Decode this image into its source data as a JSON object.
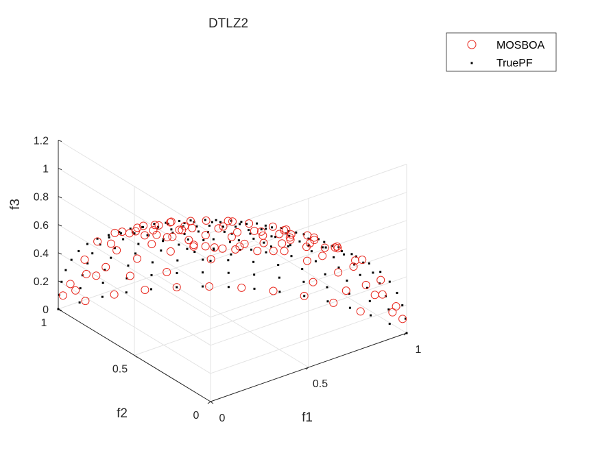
{
  "chart_data": {
    "type": "scatter",
    "title": "DTLZ2",
    "xlabel": "f1",
    "ylabel": "f2",
    "zlabel": "f3",
    "xlim": [
      0,
      1
    ],
    "ylim": [
      0,
      1
    ],
    "zlim": [
      0,
      1.2
    ],
    "x_ticks": [
      "0",
      "0.5",
      "1"
    ],
    "y_ticks": [
      "0",
      "0.5",
      "1"
    ],
    "z_ticks": [
      "0",
      "0.2",
      "0.4",
      "0.6",
      "0.8",
      "1",
      "1.2"
    ],
    "grid": true,
    "legend_position": "top-right",
    "series": [
      {
        "name": "MOSBOA",
        "marker": "open-circle",
        "color": "#e8281e",
        "points": [
          [
            0.966,
            0.259,
            0.0
          ],
          [
            0.924,
            0.383,
            0.0
          ],
          [
            0.866,
            0.5,
            0.0
          ],
          [
            0.793,
            0.609,
            0.0
          ],
          [
            0.707,
            0.707,
            0.0
          ],
          [
            0.609,
            0.793,
            0.0
          ],
          [
            0.5,
            0.866,
            0.0
          ],
          [
            0.383,
            0.924,
            0.0
          ],
          [
            0.259,
            0.966,
            0.0
          ],
          [
            0.131,
            0.991,
            0.0
          ],
          [
            0.951,
            0.204,
            0.231
          ],
          [
            0.907,
            0.33,
            0.259
          ],
          [
            0.843,
            0.451,
            0.293
          ],
          [
            0.758,
            0.563,
            0.331
          ],
          [
            0.664,
            0.664,
            0.342
          ],
          [
            0.563,
            0.758,
            0.331
          ],
          [
            0.451,
            0.843,
            0.293
          ],
          [
            0.33,
            0.907,
            0.259
          ],
          [
            0.204,
            0.951,
            0.231
          ],
          [
            0.866,
            0.165,
            0.472
          ],
          [
            0.812,
            0.295,
            0.504
          ],
          [
            0.734,
            0.424,
            0.53
          ],
          [
            0.641,
            0.538,
            0.547
          ],
          [
            0.538,
            0.641,
            0.547
          ],
          [
            0.424,
            0.734,
            0.53
          ],
          [
            0.295,
            0.812,
            0.504
          ],
          [
            0.165,
            0.866,
            0.472
          ],
          [
            0.743,
            0.126,
            0.657
          ],
          [
            0.688,
            0.25,
            0.681
          ],
          [
            0.602,
            0.366,
            0.709
          ],
          [
            0.5,
            0.5,
            0.707
          ],
          [
            0.366,
            0.602,
            0.709
          ],
          [
            0.25,
            0.688,
            0.681
          ],
          [
            0.126,
            0.743,
            0.657
          ],
          [
            0.603,
            0.095,
            0.792
          ],
          [
            0.541,
            0.214,
            0.813
          ],
          [
            0.45,
            0.327,
            0.831
          ],
          [
            0.327,
            0.45,
            0.831
          ],
          [
            0.214,
            0.541,
            0.813
          ],
          [
            0.095,
            0.603,
            0.792
          ],
          [
            0.455,
            0.061,
            0.888
          ],
          [
            0.392,
            0.172,
            0.904
          ],
          [
            0.29,
            0.29,
            0.912
          ],
          [
            0.172,
            0.392,
            0.904
          ],
          [
            0.061,
            0.455,
            0.888
          ],
          [
            0.302,
            0.04,
            0.953
          ],
          [
            0.223,
            0.148,
            0.964
          ],
          [
            0.148,
            0.223,
            0.964
          ],
          [
            0.04,
            0.302,
            0.953
          ],
          [
            0.15,
            0.03,
            0.988
          ],
          [
            0.09,
            0.09,
            0.992
          ],
          [
            0.03,
            0.15,
            0.988
          ],
          [
            0.01,
            0.01,
            1.0
          ],
          [
            0.985,
            0.05,
            0.164
          ],
          [
            0.05,
            0.985,
            0.164
          ],
          [
            0.99,
            0.08,
            0.1
          ],
          [
            0.08,
            0.99,
            0.1
          ],
          [
            0.995,
            0.02,
            0.09
          ],
          [
            0.02,
            0.995,
            0.09
          ],
          [
            0.97,
            0.12,
            0.21
          ],
          [
            0.12,
            0.97,
            0.21
          ],
          [
            0.93,
            0.08,
            0.358
          ],
          [
            0.08,
            0.93,
            0.358
          ],
          [
            0.9,
            0.22,
            0.376
          ],
          [
            0.22,
            0.9,
            0.376
          ],
          [
            0.82,
            0.06,
            0.569
          ],
          [
            0.06,
            0.82,
            0.569
          ],
          [
            0.79,
            0.2,
            0.579
          ],
          [
            0.2,
            0.79,
            0.579
          ],
          [
            0.68,
            0.04,
            0.732
          ],
          [
            0.04,
            0.68,
            0.732
          ],
          [
            0.53,
            0.03,
            0.847
          ],
          [
            0.03,
            0.53,
            0.847
          ],
          [
            0.38,
            0.02,
            0.925
          ],
          [
            0.02,
            0.38,
            0.925
          ],
          [
            0.22,
            0.06,
            0.974
          ],
          [
            0.06,
            0.22,
            0.974
          ],
          [
            0.36,
            0.12,
            0.925
          ],
          [
            0.12,
            0.36,
            0.925
          ],
          [
            0.52,
            0.14,
            0.842
          ],
          [
            0.14,
            0.52,
            0.842
          ],
          [
            0.66,
            0.17,
            0.732
          ],
          [
            0.17,
            0.66,
            0.732
          ],
          [
            0.7,
            0.45,
            0.554
          ],
          [
            0.45,
            0.7,
            0.554
          ],
          [
            0.58,
            0.25,
            0.775
          ],
          [
            0.25,
            0.58,
            0.775
          ],
          [
            0.4,
            0.4,
            0.825
          ],
          [
            0.8,
            0.4,
            0.447
          ],
          [
            0.4,
            0.8,
            0.447
          ],
          [
            0.61,
            0.61,
            0.505
          ],
          [
            0.72,
            0.62,
            0.312
          ],
          [
            0.62,
            0.72,
            0.312
          ],
          [
            0.88,
            0.46,
            0.118
          ],
          [
            0.46,
            0.88,
            0.118
          ],
          [
            0.78,
            0.52,
            0.348
          ],
          [
            0.52,
            0.78,
            0.348
          ],
          [
            0.97,
            0.17,
            0.174
          ],
          [
            0.17,
            0.97,
            0.174
          ],
          [
            0.94,
            0.32,
            0.12
          ],
          [
            0.32,
            0.94,
            0.12
          ],
          [
            0.85,
            0.36,
            0.385
          ],
          [
            0.36,
            0.85,
            0.385
          ]
        ]
      },
      {
        "name": "TruePF",
        "marker": "dot",
        "color": "#000000",
        "grid_steps": 15
      }
    ]
  }
}
